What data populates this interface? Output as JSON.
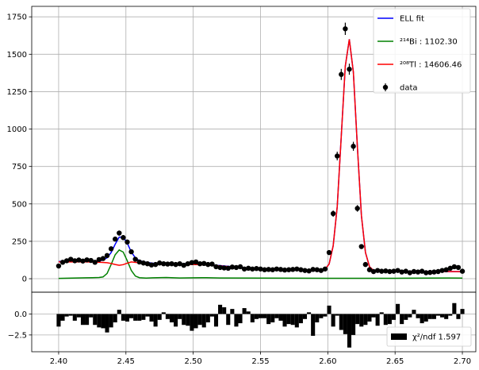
{
  "chart_data": [
    {
      "type": "scatter",
      "xlim": [
        2.38,
        2.71
      ],
      "ylim": [
        -90,
        1820
      ],
      "grid": true,
      "x_ticks": [
        2.4,
        2.45,
        2.5,
        2.55,
        2.6,
        2.65,
        2.7
      ],
      "y_ticks": [
        0,
        250,
        500,
        750,
        1000,
        1250,
        1500,
        1750
      ],
      "legend_position": "top-right",
      "legend": [
        {
          "label": "ELL fit",
          "color": "#0000ff",
          "kind": "line"
        },
        {
          "label": "²¹⁴Bi : 1102.30",
          "color": "#008000",
          "kind": "line"
        },
        {
          "label": "²⁰⁸Tl : 14606.46",
          "color": "#ff0000",
          "kind": "line"
        },
        {
          "label": "data",
          "color": "#000000",
          "kind": "errorbar"
        }
      ],
      "series": [
        {
          "name": "data",
          "color": "#000000",
          "x": [
            2.4,
            2.403,
            2.406,
            2.409,
            2.412,
            2.415,
            2.418,
            2.421,
            2.424,
            2.427,
            2.43,
            2.433,
            2.436,
            2.439,
            2.442,
            2.445,
            2.448,
            2.451,
            2.454,
            2.457,
            2.46,
            2.463,
            2.466,
            2.469,
            2.472,
            2.475,
            2.478,
            2.481,
            2.484,
            2.487,
            2.49,
            2.493,
            2.496,
            2.499,
            2.502,
            2.505,
            2.508,
            2.511,
            2.514,
            2.517,
            2.52,
            2.523,
            2.526,
            2.529,
            2.532,
            2.535,
            2.538,
            2.541,
            2.544,
            2.547,
            2.55,
            2.553,
            2.556,
            2.559,
            2.562,
            2.565,
            2.568,
            2.571,
            2.574,
            2.577,
            2.58,
            2.583,
            2.586,
            2.589,
            2.592,
            2.595,
            2.598,
            2.601,
            2.604,
            2.607,
            2.61,
            2.613,
            2.616,
            2.619,
            2.622,
            2.625,
            2.628,
            2.631,
            2.634,
            2.637,
            2.64,
            2.643,
            2.646,
            2.649,
            2.652,
            2.655,
            2.658,
            2.661,
            2.664,
            2.667,
            2.67,
            2.673,
            2.676,
            2.679,
            2.682,
            2.685,
            2.688,
            2.691,
            2.694,
            2.697,
            2.7
          ],
          "y": [
            85,
            110,
            120,
            130,
            120,
            125,
            118,
            126,
            122,
            110,
            128,
            135,
            155,
            200,
            265,
            305,
            275,
            245,
            180,
            130,
            112,
            105,
            100,
            92,
            95,
            105,
            100,
            98,
            100,
            95,
            100,
            90,
            100,
            108,
            112,
            100,
            102,
            95,
            98,
            80,
            75,
            72,
            70,
            78,
            75,
            80,
            65,
            70,
            65,
            68,
            65,
            60,
            62,
            60,
            65,
            62,
            58,
            60,
            62,
            65,
            60,
            55,
            52,
            62,
            60,
            55,
            65,
            175,
            435,
            820,
            1365,
            1670,
            1400,
            885,
            470,
            215,
            95,
            60,
            48,
            55,
            50,
            52,
            48,
            50,
            55,
            45,
            50,
            40,
            48,
            45,
            50,
            40,
            42,
            45,
            48,
            55,
            60,
            70,
            80,
            75,
            50
          ],
          "yerr": [
            9,
            10,
            11,
            11,
            11,
            11,
            11,
            11,
            11,
            10,
            11,
            12,
            12,
            14,
            16,
            17,
            17,
            16,
            13,
            11,
            11,
            10,
            10,
            10,
            10,
            10,
            10,
            10,
            10,
            10,
            10,
            9,
            10,
            10,
            11,
            10,
            10,
            10,
            10,
            9,
            9,
            8,
            8,
            9,
            9,
            9,
            8,
            8,
            8,
            8,
            8,
            8,
            8,
            8,
            8,
            8,
            8,
            8,
            8,
            8,
            8,
            7,
            7,
            8,
            8,
            7,
            8,
            13,
            21,
            29,
            37,
            41,
            37,
            30,
            22,
            15,
            10,
            8,
            7,
            7,
            7,
            7,
            7,
            7,
            7,
            7,
            7,
            6,
            7,
            7,
            7,
            6,
            6,
            7,
            7,
            7,
            8,
            8,
            9,
            9,
            7
          ]
        },
        {
          "name": "ELL fit",
          "color": "#0000ff",
          "x": [
            2.4,
            2.406,
            2.412,
            2.418,
            2.424,
            2.43,
            2.433,
            2.436,
            2.439,
            2.442,
            2.445,
            2.448,
            2.451,
            2.454,
            2.457,
            2.46,
            2.466,
            2.472,
            2.478,
            2.484,
            2.49,
            2.496,
            2.502,
            2.508,
            2.514,
            2.52,
            2.53,
            2.54,
            2.55,
            2.56,
            2.57,
            2.58,
            2.59,
            2.595,
            2.598,
            2.601,
            2.604,
            2.607,
            2.61,
            2.613,
            2.616,
            2.619,
            2.622,
            2.625,
            2.628,
            2.631,
            2.634,
            2.64,
            2.65,
            2.66,
            2.67,
            2.68,
            2.69,
            2.7
          ],
          "y": [
            115,
            118,
            118,
            117,
            116,
            118,
            125,
            140,
            175,
            230,
            278,
            278,
            238,
            178,
            140,
            120,
            108,
            102,
            101,
            100,
            100,
            101,
            100,
            96,
            92,
            88,
            80,
            72,
            66,
            62,
            60,
            58,
            57,
            58,
            64,
            98,
            220,
            480,
            950,
            1420,
            1600,
            1380,
            880,
            420,
            175,
            80,
            55,
            50,
            49,
            48,
            48,
            48,
            48,
            47
          ]
        },
        {
          "name": "²¹⁴Bi : 1102.30",
          "color": "#008000",
          "x": [
            2.4,
            2.41,
            2.42,
            2.425,
            2.43,
            2.433,
            2.436,
            2.439,
            2.442,
            2.445,
            2.448,
            2.451,
            2.454,
            2.457,
            2.46,
            2.465,
            2.47,
            2.48,
            2.49,
            2.5,
            2.51,
            2.52,
            2.55,
            2.6,
            2.65,
            2.69,
            2.7
          ],
          "y": [
            2,
            4,
            6,
            7,
            8,
            12,
            35,
            95,
            160,
            192,
            178,
            120,
            55,
            18,
            7,
            4,
            6,
            8,
            5,
            6,
            7,
            5,
            4,
            3,
            3,
            5,
            4
          ]
        },
        {
          "name": "²⁰⁸Tl : 14606.46",
          "color": "#ff0000",
          "x": [
            2.4,
            2.42,
            2.43,
            2.436,
            2.439,
            2.442,
            2.445,
            2.448,
            2.451,
            2.454,
            2.46,
            2.47,
            2.48,
            2.49,
            2.5,
            2.51,
            2.52,
            2.53,
            2.54,
            2.55,
            2.56,
            2.57,
            2.58,
            2.59,
            2.595,
            2.598,
            2.601,
            2.604,
            2.607,
            2.61,
            2.613,
            2.616,
            2.619,
            2.622,
            2.625,
            2.628,
            2.631,
            2.634,
            2.64,
            2.65,
            2.66,
            2.67,
            2.68,
            2.69,
            2.7
          ],
          "y": [
            112,
            112,
            110,
            107,
            102,
            95,
            90,
            94,
            104,
            112,
            106,
            98,
            95,
            96,
            95,
            92,
            86,
            78,
            70,
            64,
            60,
            58,
            57,
            57,
            58,
            64,
            98,
            220,
            480,
            950,
            1420,
            1600,
            1380,
            880,
            420,
            175,
            80,
            55,
            50,
            49,
            48,
            48,
            48,
            48,
            47
          ]
        }
      ]
    },
    {
      "type": "bar",
      "xlim": [
        2.38,
        2.71
      ],
      "ylim": [
        -4.5,
        2.6
      ],
      "grid": true,
      "y_ticks": [
        0.0,
        -2.5
      ],
      "legend_position": "bottom-right",
      "legend": [
        {
          "label": "χ²/ndf  1.597",
          "color": "#000000",
          "kind": "patch"
        }
      ],
      "series": [
        {
          "name": "χ²/ndf  1.597",
          "color": "#000000",
          "x": [
            2.4,
            2.403,
            2.406,
            2.409,
            2.412,
            2.415,
            2.418,
            2.421,
            2.424,
            2.427,
            2.43,
            2.433,
            2.436,
            2.439,
            2.442,
            2.445,
            2.448,
            2.451,
            2.454,
            2.457,
            2.46,
            2.463,
            2.466,
            2.469,
            2.472,
            2.475,
            2.478,
            2.481,
            2.484,
            2.487,
            2.49,
            2.493,
            2.496,
            2.499,
            2.502,
            2.505,
            2.508,
            2.511,
            2.514,
            2.517,
            2.52,
            2.523,
            2.526,
            2.529,
            2.532,
            2.535,
            2.538,
            2.541,
            2.544,
            2.547,
            2.55,
            2.553,
            2.556,
            2.559,
            2.562,
            2.565,
            2.568,
            2.571,
            2.574,
            2.577,
            2.58,
            2.583,
            2.586,
            2.589,
            2.592,
            2.595,
            2.598,
            2.601,
            2.604,
            2.607,
            2.61,
            2.613,
            2.616,
            2.619,
            2.622,
            2.625,
            2.628,
            2.631,
            2.634,
            2.637,
            2.64,
            2.643,
            2.646,
            2.649,
            2.652,
            2.655,
            2.658,
            2.661,
            2.664,
            2.667,
            2.67,
            2.673,
            2.676,
            2.679,
            2.682,
            2.685,
            2.688,
            2.691,
            2.694,
            2.697,
            2.7
          ],
          "values": [
            -1.5,
            -0.8,
            -0.3,
            -0.2,
            -0.8,
            -0.4,
            -1.3,
            -1.3,
            -0.4,
            -1.3,
            -1.6,
            -1.7,
            -2.2,
            -1.6,
            -1.0,
            0.5,
            -0.8,
            -0.9,
            -0.5,
            -0.8,
            -0.8,
            -0.7,
            -0.3,
            -0.9,
            -1.5,
            -0.7,
            0.2,
            -0.6,
            -1.0,
            -1.5,
            -0.6,
            -1.3,
            -1.4,
            -2.0,
            -1.7,
            -1.3,
            -1.6,
            -1.0,
            -0.3,
            -1.5,
            1.1,
            0.8,
            -1.3,
            0.6,
            -1.5,
            -1.1,
            0.7,
            0.3,
            -1.0,
            -0.6,
            -0.5,
            -0.5,
            -1.2,
            -1.0,
            -0.5,
            -0.8,
            -1.5,
            -1.2,
            -1.3,
            -1.6,
            -1.1,
            -0.6,
            0.2,
            -2.6,
            -1.0,
            -0.5,
            -0.3,
            1.0,
            -1.5,
            -0.2,
            -1.9,
            -2.4,
            -4.0,
            -2.5,
            -1.2,
            -1.5,
            -1.3,
            -0.9,
            -0.4,
            -1.4,
            0.2,
            -1.3,
            -1.2,
            -0.7,
            1.2,
            -1.2,
            -0.7,
            -0.4,
            0.5,
            -0.5,
            -1.1,
            -0.9,
            -0.6,
            -0.6,
            -0.2,
            -0.4,
            -0.6,
            -0.2,
            1.3,
            -0.6,
            0.6
          ]
        }
      ]
    }
  ]
}
